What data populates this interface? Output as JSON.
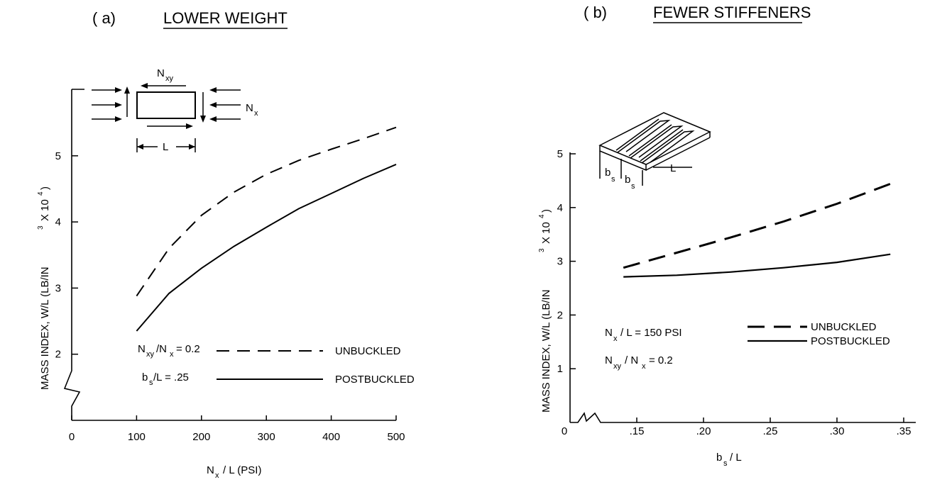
{
  "chart_data": [
    {
      "type": "line",
      "panel_label": "( a)",
      "title": "LOWER WEIGHT",
      "xlabel": "N x / L (PSI)",
      "ylabel": "MASS INDEX,  W/L  (LB/IN 3 X 10 4)",
      "xlim": [
        0,
        500
      ],
      "ylim": [
        1,
        6
      ],
      "x_ticks": [
        "0",
        "100",
        "200",
        "300",
        "400",
        "500"
      ],
      "y_ticks": [
        "2",
        "3",
        "4",
        "5"
      ],
      "y_axis_break": true,
      "grid": false,
      "series": [
        {
          "name": "UNBUCKLED",
          "style": "dashed",
          "x": [
            100,
            150,
            200,
            250,
            300,
            350,
            400,
            450,
            500
          ],
          "y": [
            2.88,
            3.6,
            4.1,
            4.45,
            4.72,
            4.93,
            5.1,
            5.26,
            5.43
          ]
        },
        {
          "name": "POSTBUCKLED",
          "style": "solid",
          "x": [
            100,
            150,
            200,
            250,
            300,
            350,
            400,
            450,
            500
          ],
          "y": [
            2.35,
            2.92,
            3.3,
            3.63,
            3.92,
            4.2,
            4.43,
            4.66,
            4.87
          ]
        }
      ],
      "annotations": [
        "N xy /N x = 0.2",
        "b s /L = .25"
      ],
      "inset_labels": [
        "N xy",
        "N x",
        "L"
      ]
    },
    {
      "type": "line",
      "panel_label": "( b)",
      "title": "FEWER STIFFENERS",
      "xlabel": "b s / L",
      "ylabel": "MASS INDEX,  W/L  (LB/IN 3 X 10 4)",
      "xlim": [
        0.1,
        0.35
      ],
      "ylim": [
        0,
        5
      ],
      "x_ticks": [
        "0",
        ".15",
        ".20",
        ".25",
        ".30",
        ".35"
      ],
      "y_ticks": [
        "1",
        "2",
        "3",
        "4",
        "5"
      ],
      "x_axis_break": true,
      "grid": false,
      "series": [
        {
          "name": "UNBUCKLED",
          "style": "dashed",
          "x": [
            0.14,
            0.18,
            0.22,
            0.26,
            0.3,
            0.34
          ],
          "y": [
            2.88,
            3.16,
            3.44,
            3.74,
            4.07,
            4.44
          ]
        },
        {
          "name": "POSTBUCKLED",
          "style": "solid",
          "x": [
            0.14,
            0.18,
            0.22,
            0.26,
            0.3,
            0.34
          ],
          "y": [
            2.71,
            2.74,
            2.8,
            2.88,
            2.98,
            3.13
          ]
        }
      ],
      "annotations": [
        "N x / L = 150 PSI",
        "N xy / N x = 0.2"
      ],
      "inset_labels": [
        "b s",
        "b s",
        "L"
      ]
    }
  ]
}
